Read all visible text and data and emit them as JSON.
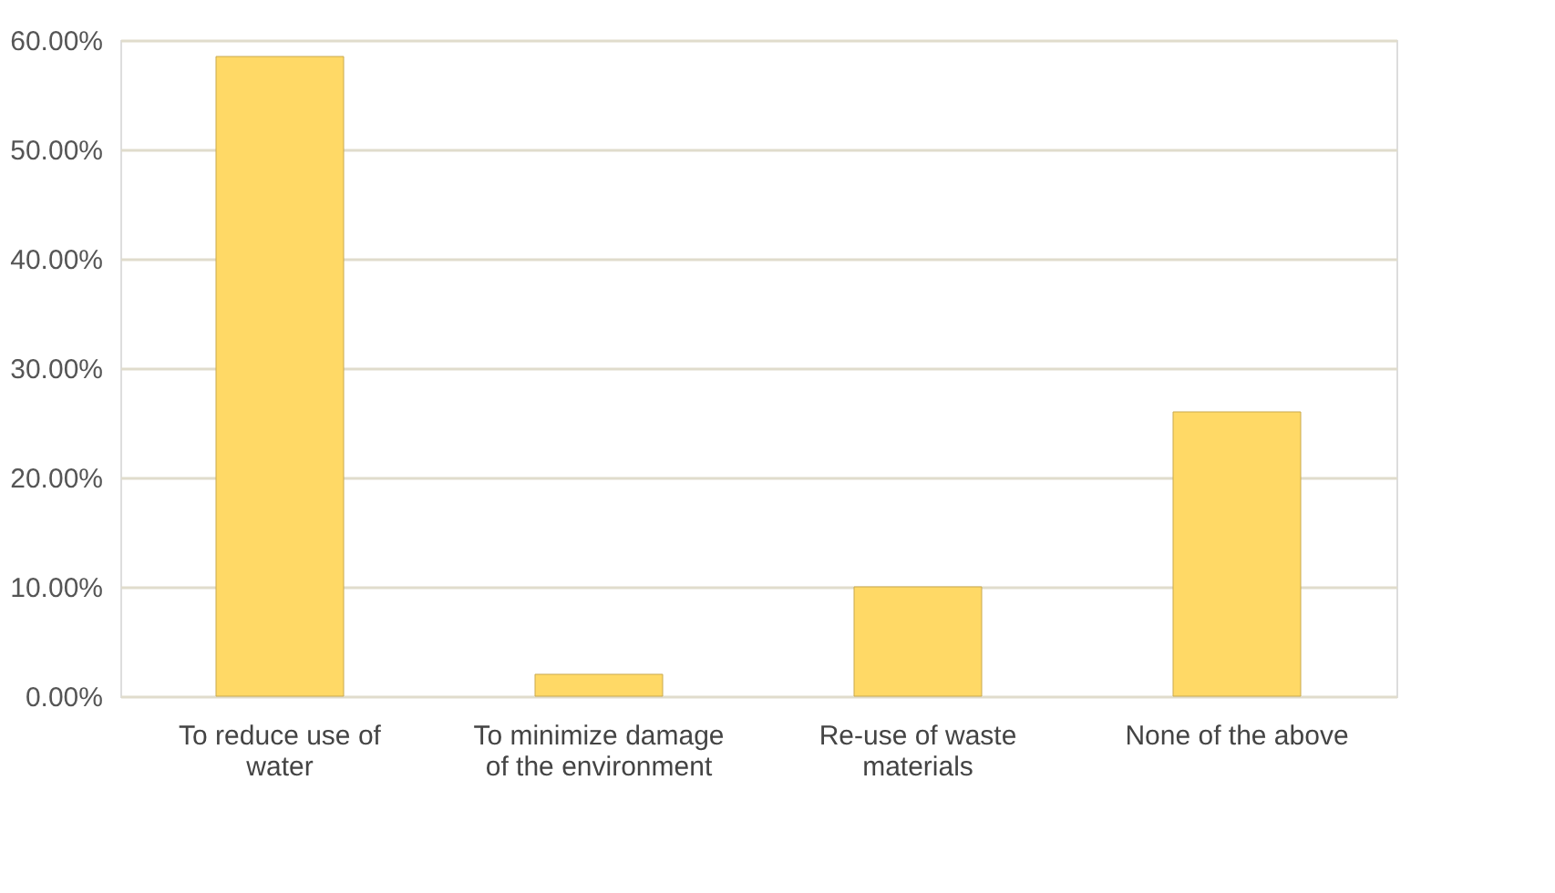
{
  "chart_data": {
    "type": "bar",
    "categories": [
      "To reduce use of water",
      "To minimize damage of the environment",
      "Re-use of waste materials",
      "None of the above"
    ],
    "values": [
      58.5,
      2,
      10,
      26
    ],
    "color": "#ffd966",
    "ylim": [
      0,
      60
    ],
    "yticks": [
      {
        "value": 0,
        "label": "0.00%"
      },
      {
        "value": 10,
        "label": "10.00%"
      },
      {
        "value": 20,
        "label": "20.00%"
      },
      {
        "value": 30,
        "label": "30.00%"
      },
      {
        "value": 40,
        "label": "40.00%"
      },
      {
        "value": 50,
        "label": "50.00%"
      },
      {
        "value": 60,
        "label": "60.00%"
      }
    ],
    "grid": "y"
  }
}
